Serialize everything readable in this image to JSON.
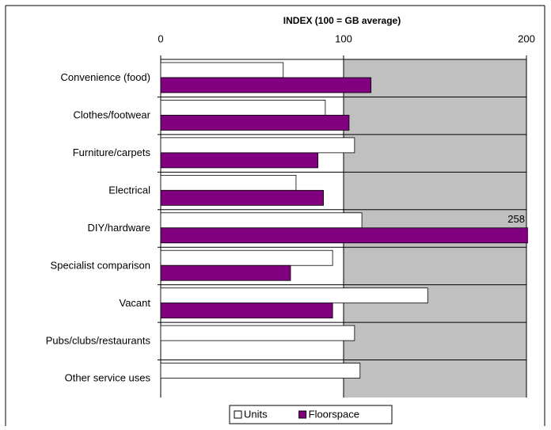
{
  "chart_data": {
    "type": "bar",
    "orientation": "horizontal",
    "title": "INDEX (100 = GB average)",
    "categories": [
      "Convenience (food)",
      "Clothes/footwear",
      "Furniture/carpets",
      "Electrical",
      "DIY/hardware",
      "Specialist comparison",
      "Vacant",
      "Pubs/clubs/restaurants",
      "Other service uses"
    ],
    "series": [
      {
        "name": "Units",
        "color": "#ffffff",
        "values": [
          67,
          90,
          106,
          74,
          110,
          94,
          146,
          106,
          109
        ]
      },
      {
        "name": "Floorspace",
        "color": "#800080",
        "values": [
          115,
          103,
          86,
          89,
          258,
          71,
          94,
          null,
          null
        ],
        "value_labels": [
          null,
          null,
          null,
          null,
          "258",
          null,
          null,
          null,
          null
        ]
      }
    ],
    "xlim": [
      0,
      200
    ],
    "xticks": [
      0,
      100,
      200
    ],
    "grid": true,
    "legend": "bottom"
  }
}
